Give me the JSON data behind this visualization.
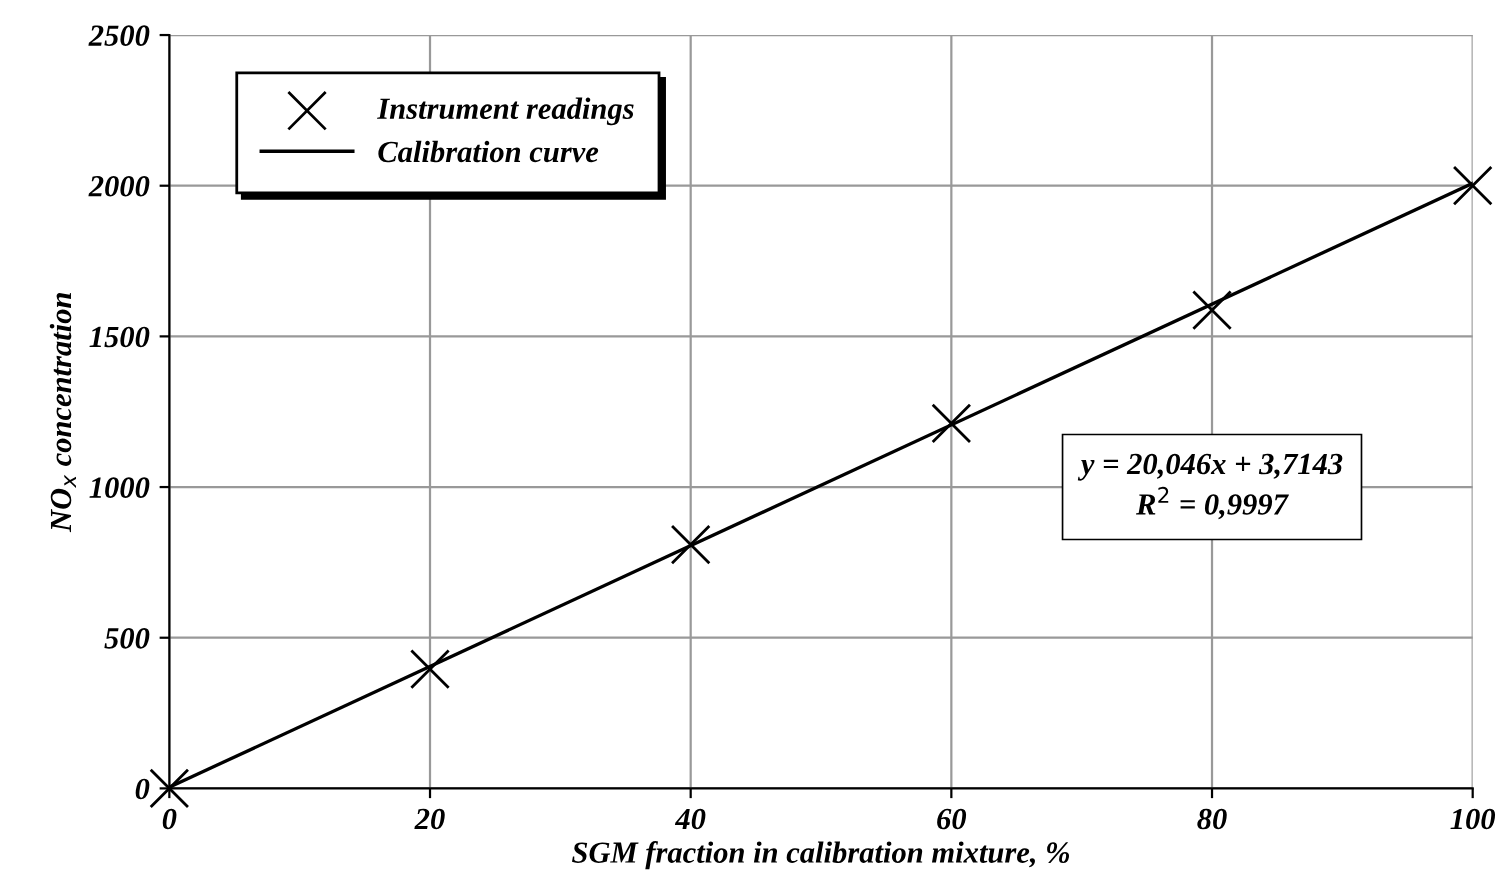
{
  "chart_data": {
    "type": "scatter",
    "xlabel": "SGM fraction in calibration mixture, %",
    "ylabel": "NO$_{x}$ concentration",
    "xlim": [
      0,
      100
    ],
    "xticks": [
      0,
      20,
      40,
      60,
      80,
      100
    ],
    "ylim": [
      0,
      2500
    ],
    "yticks": [
      0,
      500,
      1000,
      1500,
      2000,
      2500
    ],
    "grid": true,
    "legend": "top left",
    "series": [
      {
        "name": "Instrument readings",
        "marker": "cross",
        "color": "#000000",
        "x": [
          0,
          20,
          40,
          60,
          80,
          100
        ],
        "values": [
          0,
          396,
          809,
          1211,
          1587,
          2000
        ]
      },
      {
        "name": "Calibration curve",
        "type": "line",
        "line_style": "solid",
        "color": "#000000",
        "x": [
          0,
          100
        ],
        "values": [
          4,
          2008
        ]
      }
    ],
    "annotations": [
      "y = 20,046x + 3,7143\nR$^{2}$ = 0,9997"
    ]
  }
}
